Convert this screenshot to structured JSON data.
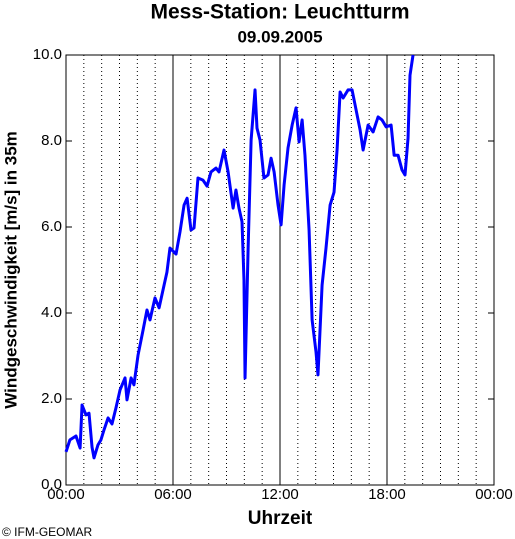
{
  "chart_data": {
    "type": "line",
    "title": "Mess-Station: Leuchtturm",
    "subtitle": "09.09.2005",
    "x_label": "Uhrzeit",
    "y_label": "Windgeschwindigkeit [m/s] in 35m",
    "credit": "© IFM-GEOMAR",
    "xlim": [
      0,
      24
    ],
    "ylim": [
      0,
      10
    ],
    "xticks": [
      {
        "value": 0,
        "label": "00:00"
      },
      {
        "value": 6,
        "label": "06:00"
      },
      {
        "value": 12,
        "label": "12:00"
      },
      {
        "value": 18,
        "label": "18:00"
      },
      {
        "value": 24,
        "label": "00:00"
      }
    ],
    "x_minor_ticks": [
      1,
      2,
      3,
      4,
      5,
      7,
      8,
      9,
      10,
      11,
      13,
      14,
      15,
      16,
      17,
      19,
      20,
      21,
      22,
      23
    ],
    "yticks": [
      {
        "value": 0,
        "label": "0.0"
      },
      {
        "value": 2,
        "label": "2.0"
      },
      {
        "value": 4,
        "label": "4.0"
      },
      {
        "value": 6,
        "label": "6.0"
      },
      {
        "value": 8,
        "label": "8.0"
      },
      {
        "value": 10,
        "label": "10.0"
      }
    ],
    "grid": true,
    "x": [
      0,
      0.22,
      0.56,
      0.79,
      0.9,
      1.12,
      1.29,
      1.46,
      1.57,
      1.79,
      1.96,
      2.13,
      2.36,
      2.58,
      2.8,
      3.03,
      3.31,
      3.42,
      3.65,
      3.81,
      4.04,
      4.32,
      4.54,
      4.71,
      4.99,
      5.22,
      5.5,
      5.66,
      5.83,
      6.17,
      6.39,
      6.62,
      6.79,
      7.01,
      7.18,
      7.4,
      7.68,
      7.91,
      8.13,
      8.41,
      8.58,
      8.86,
      9.09,
      9.37,
      9.53,
      9.7,
      9.87,
      9.98,
      10.04,
      10.21,
      10.38,
      10.6,
      10.71,
      10.88,
      11.1,
      11.33,
      11.5,
      11.67,
      11.89,
      12.06,
      12.23,
      12.45,
      12.68,
      12.9,
      13.07,
      13.24,
      13.4,
      13.63,
      13.8,
      14.02,
      14.13,
      14.36,
      14.58,
      14.81,
      15.03,
      15.2,
      15.37,
      15.54,
      15.82,
      16.04,
      16.21,
      16.49,
      16.66,
      16.94,
      17.22,
      17.5,
      17.72,
      17.95,
      18.23,
      18.4,
      18.62,
      18.84,
      19.01,
      19.18,
      19.29,
      19.46
    ],
    "series": [
      {
        "name": "Windgeschwindigkeit",
        "color": "#0000ff",
        "values": [
          0.77,
          1.05,
          1.14,
          0.86,
          1.86,
          1.63,
          1.67,
          0.88,
          0.63,
          0.93,
          1.05,
          1.28,
          1.56,
          1.42,
          1.79,
          2.21,
          2.49,
          1.98,
          2.49,
          2.33,
          3.02,
          3.6,
          4.07,
          3.84,
          4.35,
          4.12,
          4.65,
          4.95,
          5.51,
          5.37,
          5.88,
          6.51,
          6.67,
          5.93,
          5.98,
          7.14,
          7.09,
          6.95,
          7.28,
          7.37,
          7.28,
          7.79,
          7.28,
          6.44,
          6.86,
          6.44,
          6.12,
          4.77,
          2.49,
          5.47,
          8.02,
          9.19,
          8.3,
          8.02,
          7.14,
          7.21,
          7.6,
          7.28,
          6.51,
          6.05,
          6.98,
          7.84,
          8.37,
          8.77,
          7.98,
          8.49,
          7.67,
          5.93,
          3.84,
          3.09,
          2.56,
          4.65,
          5.51,
          6.51,
          6.81,
          7.79,
          9.14,
          9.0,
          9.19,
          9.19,
          8.84,
          8.26,
          7.79,
          8.37,
          8.21,
          8.56,
          8.49,
          8.33,
          8.37,
          7.67,
          7.67,
          7.33,
          7.21,
          8.07,
          9.53,
          10.0
        ]
      }
    ]
  }
}
